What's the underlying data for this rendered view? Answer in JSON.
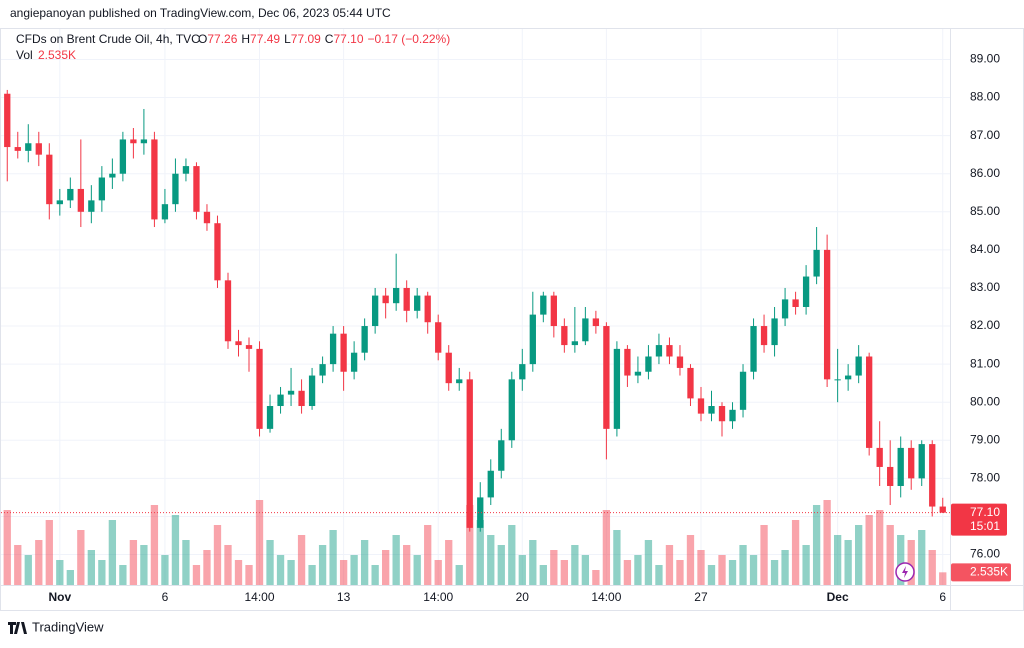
{
  "header": "angiepanoyan published on TradingView.com, Dec 06, 2023 05:44 UTC",
  "footer": "TradingView",
  "chart_data": {
    "type": "candlestick",
    "legend": {
      "symbol": "CFDs on Brent Crude Oil, 4h, TVC",
      "o_key": "O",
      "o": "77.26",
      "h_key": "H",
      "h": "77.49",
      "l_key": "L",
      "l": "77.09",
      "c_key": "C",
      "c": "77.10",
      "change": "−0.17 (−0.22%)",
      "vol_key": "Vol",
      "vol": "2.535K"
    },
    "up_color": "#089981",
    "down_color": "#f23645",
    "categories": [
      null,
      null,
      null,
      null,
      null,
      "Nov",
      null,
      null,
      null,
      null,
      null,
      null,
      null,
      null,
      null,
      "6",
      null,
      null,
      null,
      null,
      null,
      null,
      null,
      null,
      "14:00",
      null,
      null,
      null,
      null,
      null,
      null,
      null,
      "13",
      null,
      null,
      null,
      null,
      null,
      null,
      null,
      null,
      "14:00",
      null,
      null,
      null,
      null,
      null,
      null,
      null,
      "20",
      null,
      null,
      null,
      null,
      null,
      null,
      null,
      "14:00",
      null,
      null,
      null,
      null,
      null,
      null,
      null,
      null,
      "27",
      null,
      null,
      null,
      null,
      null,
      null,
      null,
      null,
      null,
      null,
      null,
      null,
      "Dec",
      null,
      null,
      null,
      null,
      null,
      null,
      null,
      null,
      null,
      "6"
    ],
    "open": [
      88.1,
      86.7,
      86.6,
      86.8,
      86.5,
      85.2,
      85.3,
      85.6,
      85.0,
      85.3,
      85.9,
      86.0,
      86.9,
      86.8,
      86.9,
      84.8,
      85.2,
      86.0,
      86.2,
      85.0,
      84.7,
      83.2,
      81.6,
      81.5,
      81.4,
      79.3,
      79.9,
      80.2,
      80.3,
      79.9,
      80.7,
      81.0,
      81.8,
      80.8,
      81.3,
      82.0,
      82.8,
      82.6,
      83.0,
      82.4,
      82.8,
      82.1,
      81.3,
      80.5,
      80.6,
      76.7,
      77.5,
      78.2,
      79.0,
      80.6,
      81.0,
      82.3,
      82.8,
      82.0,
      81.5,
      81.6,
      82.2,
      82.0,
      79.3,
      81.4,
      80.7,
      80.8,
      81.2,
      81.5,
      81.2,
      80.9,
      80.1,
      79.7,
      79.9,
      79.5,
      79.8,
      80.8,
      82.0,
      81.5,
      82.2,
      82.7,
      82.5,
      83.3,
      84.0,
      80.6,
      80.6,
      80.7,
      81.2,
      78.8,
      78.3,
      77.8,
      78.8,
      78.0,
      78.9,
      77.26
    ],
    "high": [
      88.2,
      87.1,
      87.3,
      87.1,
      86.8,
      85.6,
      85.9,
      86.9,
      85.7,
      86.2,
      86.4,
      87.1,
      87.2,
      87.7,
      87.1,
      85.6,
      86.4,
      86.4,
      86.3,
      85.2,
      84.9,
      83.4,
      81.9,
      81.7,
      81.6,
      80.2,
      80.4,
      80.9,
      80.6,
      80.9,
      81.2,
      82.0,
      82.0,
      81.6,
      82.2,
      83.0,
      83.0,
      83.9,
      83.2,
      83.0,
      82.9,
      82.3,
      81.5,
      80.9,
      80.8,
      77.9,
      78.5,
      79.3,
      80.8,
      81.4,
      82.9,
      82.9,
      82.9,
      82.2,
      82.5,
      82.5,
      82.4,
      82.1,
      81.6,
      81.5,
      81.2,
      81.5,
      81.8,
      81.7,
      81.5,
      81.0,
      80.4,
      80.3,
      80.0,
      80.0,
      81.0,
      82.2,
      82.3,
      82.5,
      83.0,
      82.9,
      83.6,
      84.6,
      84.4,
      81.4,
      81.0,
      81.5,
      81.3,
      79.5,
      79.0,
      79.1,
      79.0,
      79.0,
      79.0,
      77.49
    ],
    "low": [
      85.8,
      86.4,
      86.3,
      86.2,
      84.8,
      84.9,
      85.1,
      84.6,
      84.7,
      85.0,
      85.6,
      85.8,
      86.4,
      86.5,
      84.6,
      84.7,
      85.0,
      85.8,
      84.8,
      84.5,
      83.0,
      81.4,
      81.2,
      80.8,
      79.1,
      79.2,
      79.7,
      79.9,
      79.7,
      79.8,
      80.5,
      80.8,
      80.3,
      80.6,
      81.1,
      81.8,
      82.2,
      82.4,
      82.1,
      82.2,
      81.8,
      81.1,
      80.3,
      80.3,
      76.6,
      76.6,
      77.3,
      78.0,
      78.8,
      80.3,
      80.8,
      82.1,
      81.7,
      81.3,
      81.3,
      81.5,
      81.8,
      78.5,
      79.1,
      80.4,
      80.5,
      80.6,
      81.0,
      81.0,
      80.7,
      79.9,
      79.5,
      79.5,
      79.1,
      79.3,
      79.6,
      80.6,
      81.3,
      81.2,
      82.0,
      82.3,
      82.3,
      83.1,
      80.4,
      80.0,
      80.3,
      80.5,
      78.6,
      77.8,
      77.3,
      77.5,
      77.7,
      77.8,
      77.0,
      77.09
    ],
    "close": [
      86.7,
      86.6,
      86.8,
      86.5,
      85.2,
      85.3,
      85.6,
      85.0,
      85.3,
      85.9,
      86.0,
      86.9,
      86.8,
      86.9,
      84.8,
      85.2,
      86.0,
      86.2,
      85.0,
      84.7,
      83.2,
      81.6,
      81.5,
      81.4,
      79.3,
      79.9,
      80.2,
      80.3,
      79.9,
      80.7,
      81.0,
      81.8,
      80.8,
      81.3,
      82.0,
      82.8,
      82.6,
      83.0,
      82.4,
      82.8,
      82.1,
      81.3,
      80.5,
      80.6,
      76.7,
      77.5,
      78.2,
      79.0,
      80.6,
      81.0,
      82.3,
      82.8,
      82.0,
      81.5,
      81.6,
      82.2,
      82.0,
      79.3,
      81.4,
      80.7,
      80.8,
      81.2,
      81.5,
      81.2,
      80.9,
      80.1,
      79.7,
      79.9,
      79.5,
      79.8,
      80.8,
      82.0,
      81.5,
      82.2,
      82.7,
      82.5,
      83.3,
      84.0,
      80.6,
      80.6,
      80.7,
      81.2,
      78.8,
      78.3,
      77.8,
      78.8,
      78.0,
      78.9,
      77.26,
      77.1
    ],
    "volumes": [
      15,
      8,
      6,
      9,
      13,
      5,
      3,
      11,
      7,
      5,
      13,
      4,
      9,
      8,
      16,
      6,
      14,
      9,
      4,
      7,
      12,
      8,
      5,
      4,
      17,
      9,
      6,
      5,
      10,
      4,
      8,
      11,
      5,
      6,
      9,
      4,
      7,
      10,
      8,
      6,
      12,
      5,
      9,
      4,
      16,
      13,
      10,
      8,
      12,
      6,
      9,
      4,
      7,
      5,
      8,
      6,
      3,
      15,
      11,
      5,
      6,
      9,
      4,
      8,
      5,
      10,
      7,
      4,
      6,
      5,
      8,
      6,
      12,
      5,
      7,
      13,
      8,
      16,
      17,
      10,
      9,
      12,
      14,
      15,
      12,
      10,
      9,
      11,
      7,
      2.535
    ],
    "last_price": 77.1,
    "last_price_label": "77.10",
    "countdown": "15:01",
    "last_volume_label": "2.535K",
    "ylim": [
      75.2,
      89.8
    ],
    "yticks": [
      {
        "value": 76,
        "label": "76.00"
      },
      {
        "value": 77,
        "label": "77.00"
      },
      {
        "value": 78,
        "label": "78.00"
      },
      {
        "value": 79,
        "label": "79.00"
      },
      {
        "value": 80,
        "label": "80.00"
      },
      {
        "value": 81,
        "label": "81.00"
      },
      {
        "value": 82,
        "label": "82.00"
      },
      {
        "value": 83,
        "label": "83.00"
      },
      {
        "value": 84,
        "label": "84.00"
      },
      {
        "value": 85,
        "label": "85.00"
      },
      {
        "value": 86,
        "label": "86.00"
      },
      {
        "value": 87,
        "label": "87.00"
      },
      {
        "value": 88,
        "label": "88.00"
      },
      {
        "value": 89,
        "label": "89.00"
      }
    ],
    "grid": true
  }
}
